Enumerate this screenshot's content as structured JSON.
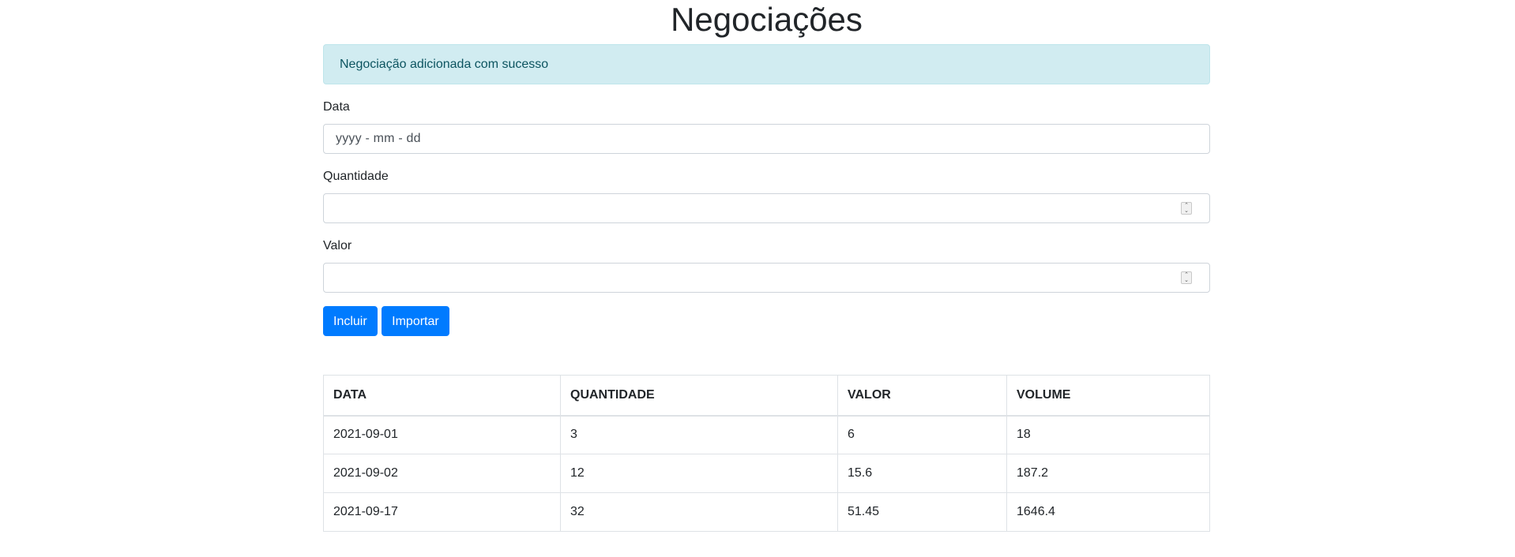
{
  "page": {
    "title": "Negociações"
  },
  "alert": {
    "message": "Negociação adicionada com sucesso"
  },
  "form": {
    "data": {
      "label": "Data",
      "placeholder": "yyyy - mm - dd"
    },
    "quantidade": {
      "label": "Quantidade",
      "value": ""
    },
    "valor": {
      "label": "Valor",
      "value": ""
    },
    "buttons": {
      "incluir": "Incluir",
      "importar": "Importar"
    }
  },
  "table": {
    "headers": [
      "DATA",
      "QUANTIDADE",
      "VALOR",
      "VOLUME"
    ],
    "rows": [
      [
        "2021-09-01",
        "3",
        "6",
        "18"
      ],
      [
        "2021-09-02",
        "12",
        "15.6",
        "187.2"
      ],
      [
        "2021-09-17",
        "32",
        "51.45",
        "1646.4"
      ]
    ]
  },
  "colors": {
    "primary": "#007bff",
    "alert_bg": "#d1ecf1",
    "alert_text": "#0c5460"
  }
}
